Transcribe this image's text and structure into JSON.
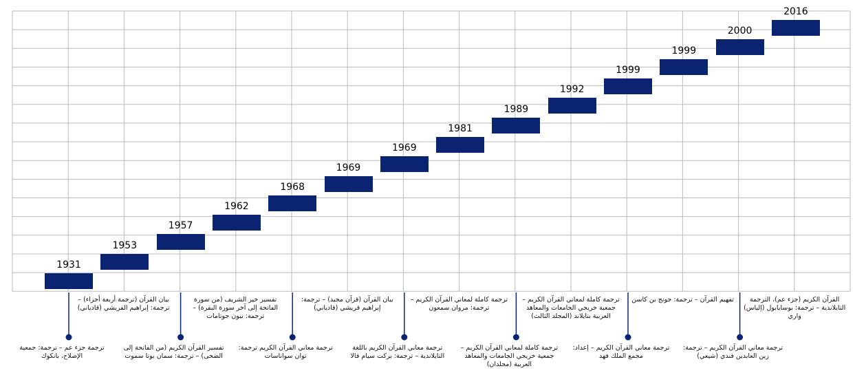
{
  "timeline": {
    "items": [
      {
        "year": "1931",
        "text": "ترجمة جزء عم – ترجمة: جمعية الإصلاح، بانكوك"
      },
      {
        "year": "1953",
        "text": "بيان القرآن (ترجمة أربعة أجزاء) – ترجمة: إبراهيم القريشي (قادياني)"
      },
      {
        "year": "1957",
        "text": "تفسير القرآن الكريم (من الفاتحة إلى الضحى) – ترجمة: سمان بوتا سموت"
      },
      {
        "year": "1962",
        "text": "تفسير خير الشريف (من سورة الفاتحة إلى آخر سورة البقرة) – ترجمة: نيون جوتامات"
      },
      {
        "year": "1968",
        "text": "ترجمة معاني القرآن الكريم ترجمة: توان سواناسات"
      },
      {
        "year": "1969",
        "text": "بيان القرآن (قرآن مجيد) – ترجمة: إبراهيم قريشي (قادياني)"
      },
      {
        "year": "1969",
        "text": "ترجمة معاني القرآن الكريم باللغة التايلاندية – ترجمة: بركت سيام فالا"
      },
      {
        "year": "1981",
        "text": "ترجمة كاملة لمعاني القرآن الكريم – ترجمة: مروان سمعون"
      },
      {
        "year": "1989",
        "text": "ترجمة كاملة لمعاني القرآن الكريم – جمعية خريجي الجامعات والمعاهد العربية (مجلدان)"
      },
      {
        "year": "1992",
        "text": "ترجمة كاملة لمعاني القرآن الكريم – جمعية خريجي الجامعات والمعاهد العربية بتايلاند (المجلد الثالث)"
      },
      {
        "year": "1999",
        "text": "ترجمة معاني القرآن الكريم – إعداد: مجمع الملك فهد"
      },
      {
        "year": "1999",
        "text": "تفهيم القرآن – ترجمة: جونج بن كاسن"
      },
      {
        "year": "2000",
        "text": "ترجمة معاني القرآن الكريم – ترجمة: زين العابدين فندي (شيعي)"
      },
      {
        "year": "2016",
        "text": "القرآن الكريم (جزء عم)، الترجمة التايلاندية – ترجمة: بوسايابول (إلياس) واري"
      }
    ]
  }
}
